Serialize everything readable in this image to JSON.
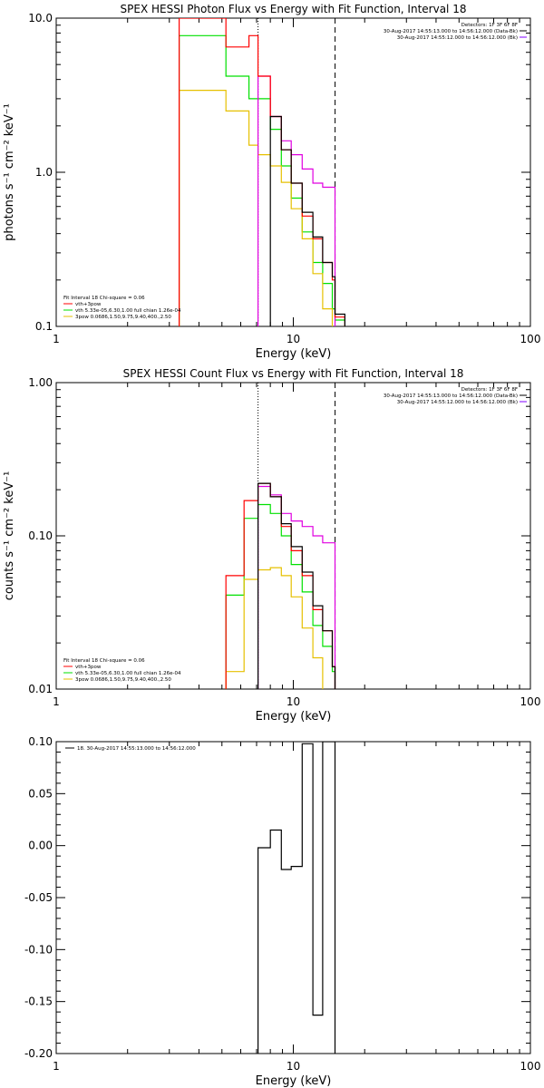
{
  "colors": {
    "black": "#000000",
    "red": "#ff0000",
    "green": "#00e000",
    "yellow": "#e6c000",
    "magenta": "#e000e0",
    "purple": "#8000ff"
  },
  "chart_data": [
    {
      "type": "line",
      "title": "SPEX HESSI Photon Flux vs Energy with Fit Function, Interval 18",
      "xlabel": "Energy (keV)",
      "ylabel": "photons s⁻¹ cm⁻² keV⁻¹",
      "xscale": "log",
      "yscale": "log",
      "xlim": [
        1,
        100
      ],
      "ylim": [
        0.1,
        10
      ],
      "x_ticks": [
        "1",
        "10",
        "100"
      ],
      "y_ticks": [
        "0.1",
        "1.0",
        "10.0"
      ],
      "vlines": [
        {
          "x": 7.1,
          "style": "dotted"
        },
        {
          "x": 15.0,
          "style": "dashed"
        }
      ],
      "legend_top": [
        "Detectors: 1F 3F 6F 8F",
        "30-Aug-2017 14:55:13.000 to 14:56:12.000 (Data-Bk)",
        "30-Aug-2017 14:55:12.000 to 14:56:12.000 (Bk)"
      ],
      "legend_bottom": [
        "Fit Interval 18   Chi-square = 0.06",
        "vth+3pow",
        "vth 5.33e-05,6.30,1.00  full chian 1.26e-04",
        "3pow 0.0686,1.50,9.75,9.40,400.,2.50"
      ],
      "bin_edges": [
        3.3,
        4.1,
        5.2,
        6.5,
        7.1,
        8.0,
        8.9,
        9.8,
        10.9,
        12.1,
        13.3,
        14.6,
        15.0,
        16.5
      ],
      "series": [
        {
          "name": "Data-Bk",
          "values": [
            null,
            null,
            null,
            null,
            null,
            2.3,
            1.4,
            0.85,
            0.55,
            0.38,
            0.26,
            0.21,
            0.12
          ]
        },
        {
          "name": "Bk",
          "values": [
            null,
            null,
            null,
            null,
            4.2,
            2.3,
            1.6,
            1.3,
            1.05,
            0.85,
            0.8,
            0.8,
            null
          ]
        },
        {
          "name": "vth+3pow",
          "values": [
            10.0,
            10.0,
            6.5,
            7.7,
            4.2,
            2.3,
            1.4,
            0.85,
            0.52,
            0.37,
            0.26,
            0.2,
            0.115
          ]
        },
        {
          "name": "vth",
          "values": [
            7.7,
            7.7,
            4.2,
            3.0,
            3.0,
            1.9,
            1.1,
            0.68,
            0.41,
            0.26,
            0.19,
            0.13,
            0.11
          ]
        },
        {
          "name": "3pow",
          "values": [
            3.4,
            3.4,
            2.5,
            1.5,
            1.3,
            1.1,
            0.86,
            0.58,
            0.37,
            0.22,
            0.13,
            null,
            null
          ]
        }
      ]
    },
    {
      "type": "line",
      "title": "SPEX HESSI Count Flux vs Energy with Fit Function, Interval 18",
      "xlabel": "Energy (keV)",
      "ylabel": "counts s⁻¹ cm⁻² keV⁻¹",
      "xscale": "log",
      "yscale": "log",
      "xlim": [
        1,
        100
      ],
      "ylim": [
        0.01,
        1
      ],
      "x_ticks": [
        "1",
        "10",
        "100"
      ],
      "y_ticks": [
        "0.01",
        "0.10",
        "1.00"
      ],
      "vlines": [
        {
          "x": 7.1,
          "style": "dotted"
        },
        {
          "x": 15.0,
          "style": "dashed"
        }
      ],
      "legend_top": [
        "Detectors: 1F 3F 6F 8F",
        "30-Aug-2017 14:55:13.000 to 14:56:12.000 (Data-Bk)",
        "30-Aug-2017 14:55:12.000 to 14:56:12.000 (Bk)"
      ],
      "legend_bottom": [
        "Fit Interval 18   Chi-square = 0.06",
        "vth+3pow",
        "vth 5.33e-05,6.30,1.00  full chian 1.26e-04",
        "3pow 0.0686,1.50,9.75,9.40,400.,2.50"
      ],
      "bin_edges": [
        5.2,
        6.2,
        7.1,
        8.0,
        8.9,
        9.8,
        10.9,
        12.1,
        13.3,
        14.6,
        15.0,
        16.5
      ],
      "series": [
        {
          "name": "Data-Bk",
          "values": [
            null,
            null,
            0.22,
            0.18,
            0.12,
            0.085,
            0.058,
            0.035,
            0.024,
            0.014,
            null
          ]
        },
        {
          "name": "Bk",
          "values": [
            null,
            null,
            0.21,
            0.185,
            0.14,
            0.125,
            0.115,
            0.1,
            0.09,
            0.09,
            null
          ]
        },
        {
          "name": "vth+3pow",
          "values": [
            0.055,
            0.17,
            0.22,
            0.18,
            0.115,
            0.08,
            0.055,
            0.033,
            0.024,
            0.014,
            null
          ]
        },
        {
          "name": "vth",
          "values": [
            0.041,
            0.13,
            0.16,
            0.14,
            0.1,
            0.065,
            0.043,
            0.026,
            0.019,
            0.013,
            null
          ]
        },
        {
          "name": "3pow",
          "values": [
            0.013,
            0.052,
            0.06,
            0.062,
            0.055,
            0.04,
            0.025,
            0.016,
            null,
            null,
            null
          ]
        }
      ]
    },
    {
      "type": "line",
      "title": "",
      "xlabel": "Energy (keV)",
      "ylabel": "",
      "xscale": "log",
      "yscale": "linear",
      "xlim": [
        1,
        100
      ],
      "ylim": [
        -0.2,
        0.1
      ],
      "x_ticks": [
        "1",
        "10",
        "100"
      ],
      "y_ticks": [
        "0.10",
        "0.05",
        "0.00",
        "-0.05",
        "-0.10",
        "-0.15",
        "-0.20"
      ],
      "y_tick_values": [
        0.1,
        0.05,
        0.0,
        -0.05,
        -0.1,
        -0.15,
        -0.2
      ],
      "legend_top": [
        "18. 30-Aug-2017 14:55:13.000 to 14:56:12.000"
      ],
      "bin_edges": [
        7.1,
        8.0,
        8.9,
        9.8,
        10.9,
        12.1,
        13.3,
        15.0
      ],
      "series": [
        {
          "name": "18. 30-Aug-2017 14:55:13.000 to 14:56:12.000",
          "values": [
            -0.002,
            0.015,
            -0.023,
            -0.02,
            0.098,
            -0.163,
            0.102
          ]
        }
      ]
    }
  ]
}
